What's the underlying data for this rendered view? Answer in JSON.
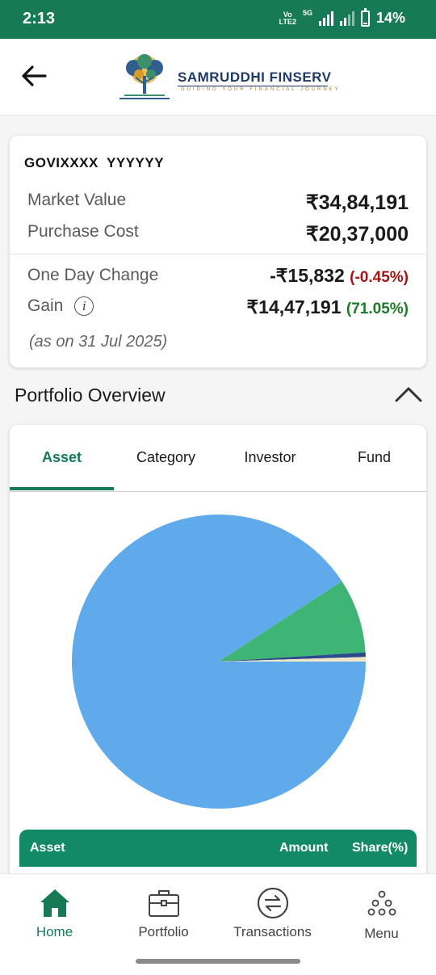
{
  "status_bar": {
    "time": "2:13",
    "network_vo": "Vo",
    "network_lte": "LTE2",
    "network_5g": "5G",
    "battery": "14%",
    "battery_level": 0.14
  },
  "header": {
    "brand": "SAMRUDDHI FINSERV",
    "tagline": "GUIDING YOUR FINANCIAL JOURNEY",
    "logo_icon": "tree-logo-icon",
    "back_icon": "arrow-left-icon"
  },
  "summary": {
    "account_name": "GOVIXXXX  YYYYYY",
    "market_value_label": "Market Value",
    "market_value": "₹34,84,191",
    "purchase_cost_label": "Purchase Cost",
    "purchase_cost": "₹20,37,000",
    "one_day_change_label": "One Day Change",
    "one_day_change": "-₹15,832",
    "one_day_change_pct": "(-0.45%)",
    "gain_label": "Gain",
    "gain": "₹14,47,191",
    "gain_pct": "(71.05%)",
    "as_on": "(as on 31 Jul 2025)"
  },
  "overview": {
    "title": "Portfolio Overview",
    "tabs": [
      {
        "label": "Asset",
        "active": true
      },
      {
        "label": "Category",
        "active": false
      },
      {
        "label": "Investor",
        "active": false
      },
      {
        "label": "Fund",
        "active": false
      }
    ],
    "table_headers": {
      "asset": "Asset",
      "amount": "Amount",
      "share": "Share(%)"
    }
  },
  "chart_data": {
    "type": "pie",
    "slices": [
      {
        "value": 90.8,
        "color": "#5eaaea"
      },
      {
        "value": 8.2,
        "color": "#3eb574"
      },
      {
        "value": 0.5,
        "color": "#2b4a8c"
      },
      {
        "value": 0.5,
        "color": "#efe6c8"
      }
    ],
    "start_angle_deg": 90,
    "direction": "clockwise"
  },
  "bottom_nav": [
    {
      "label": "Home",
      "icon": "home-icon",
      "active": true
    },
    {
      "label": "Portfolio",
      "icon": "briefcase-icon",
      "active": false
    },
    {
      "label": "Transactions",
      "icon": "transactions-icon",
      "active": false
    },
    {
      "label": "Menu",
      "icon": "menu-dots-icon",
      "active": false
    }
  ],
  "colors": {
    "primary": "#157a55",
    "table_header": "#138a66",
    "negative": "#a31515",
    "positive": "#1e7a2a"
  }
}
